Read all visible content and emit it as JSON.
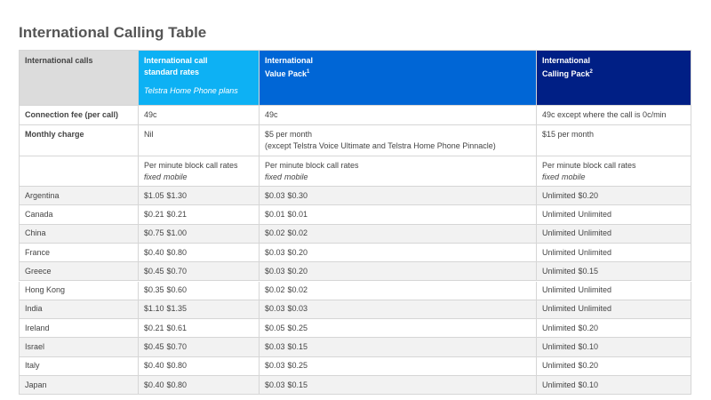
{
  "title": "International Calling Table",
  "table": {
    "header": [
      {
        "lines": [
          "International calls"
        ]
      },
      {
        "lines": [
          "International call",
          "standard rates"
        ],
        "note": "Telstra Home Phone plans"
      },
      {
        "lines": [
          "International",
          "Value Pack"
        ],
        "sup": "1"
      },
      {
        "lines": [
          "International",
          "Calling Pack"
        ],
        "sup": "2"
      }
    ],
    "rows": [
      [
        "Connection fee (per call)",
        "49c",
        "49c",
        "49c except where the call is 0c/min"
      ],
      [
        "Monthly charge",
        "Nil",
        [
          "$5 per month",
          "(except Telstra Voice Ultimate and Telstra Home Phone Pinnacle)"
        ],
        "$15 per month"
      ]
    ],
    "rate_headers": [
      {
        "label": "Per minute block call rates",
        "columns": [
          "fixed",
          "mobile"
        ]
      },
      {
        "label": "Per minute block call rates",
        "columns": [
          "fixed",
          "mobile"
        ]
      },
      {
        "label": "Per minute block call rates",
        "columns": [
          "fixed",
          "mobile"
        ]
      }
    ],
    "countries": [
      [
        "Argentina",
        [
          "$1.05",
          "$1.30"
        ],
        [
          "$0.03",
          "$0.30"
        ],
        [
          "Unlimited",
          "$0.20"
        ]
      ],
      [
        "Canada",
        [
          "$0.21",
          "$0.21"
        ],
        [
          "$0.01",
          "$0.01"
        ],
        [
          "Unlimited",
          "Unlimited"
        ]
      ],
      [
        "China",
        [
          "$0.75",
          "$1.00"
        ],
        [
          "$0.02",
          "$0.02"
        ],
        [
          "Unlimited",
          "Unlimited"
        ]
      ],
      [
        "France",
        [
          "$0.40",
          "$0.80"
        ],
        [
          "$0.03",
          "$0.20"
        ],
        [
          "Unlimited",
          "Unlimited"
        ]
      ],
      [
        "Greece",
        [
          "$0.45",
          "$0.70"
        ],
        [
          "$0.03",
          "$0.20"
        ],
        [
          "Unlimited",
          "$0.15"
        ]
      ],
      [
        "Hong Kong",
        [
          "$0.35",
          "$0.60"
        ],
        [
          "$0.02",
          "$0.02"
        ],
        [
          "Unlimited",
          "Unlimited"
        ]
      ],
      [
        "India",
        [
          "$1.10",
          "$1.35"
        ],
        [
          "$0.03",
          "$0.03"
        ],
        [
          "Unlimited",
          "Unlimited"
        ]
      ],
      [
        "Ireland",
        [
          "$0.21",
          "$0.61"
        ],
        [
          "$0.05",
          "$0.25"
        ],
        [
          "Unlimited",
          "$0.20"
        ]
      ],
      [
        "Israel",
        [
          "$0.45",
          "$0.70"
        ],
        [
          "$0.03",
          "$0.15"
        ],
        [
          "Unlimited",
          "$0.10"
        ]
      ],
      [
        "Italy",
        [
          "$0.40",
          "$0.80"
        ],
        [
          "$0.03",
          "$0.25"
        ],
        [
          "Unlimited",
          "$0.20"
        ]
      ],
      [
        "Japan",
        [
          "$0.40",
          "$0.80"
        ],
        [
          "$0.03",
          "$0.15"
        ],
        [
          "Unlimited",
          "$0.10"
        ]
      ]
    ]
  }
}
